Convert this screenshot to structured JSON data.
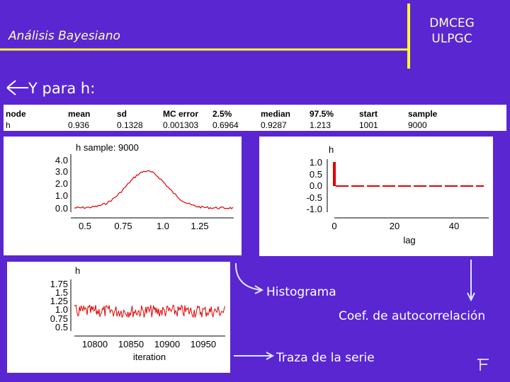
{
  "header": {
    "title": "Análisis Bayesiano",
    "logo": [
      "DMCEG",
      "ULPGC"
    ]
  },
  "subtitle": "Y para h:",
  "table": {
    "columns": [
      "node",
      "mean",
      "sd",
      "MC error",
      "2.5%",
      "median",
      "97.5%",
      "start",
      "sample"
    ],
    "rows": [
      [
        "h",
        "0.936",
        "0.1328",
        "0.001303",
        "0.6964",
        "0.9287",
        "1.213",
        "1001",
        "9000"
      ]
    ]
  },
  "density_panel": {
    "title": "h sample: 9000",
    "yticks": [
      "4.0",
      "3.0",
      "2.0",
      "1.0",
      "0.0"
    ],
    "xticks": [
      "0.5",
      "0.75",
      "1.0",
      "1.25"
    ]
  },
  "acf_panel": {
    "title": "h",
    "yticks": [
      "1.0",
      "0.5",
      "0.0",
      "-0.5",
      "-1.0"
    ],
    "xticks": [
      "0",
      "20",
      "40"
    ],
    "xlabel": "lag"
  },
  "trace_panel": {
    "title": "h",
    "yticks": [
      "1.75",
      "1.5",
      "1.25",
      "1.0",
      "0.75",
      "0.5"
    ],
    "xticks": [
      "10800",
      "10850",
      "10900",
      "10950"
    ],
    "xlabel": "iteration"
  },
  "annotations": [
    "Histograma",
    "Coef. de autocorrelación",
    "Traza de la serie"
  ]
}
